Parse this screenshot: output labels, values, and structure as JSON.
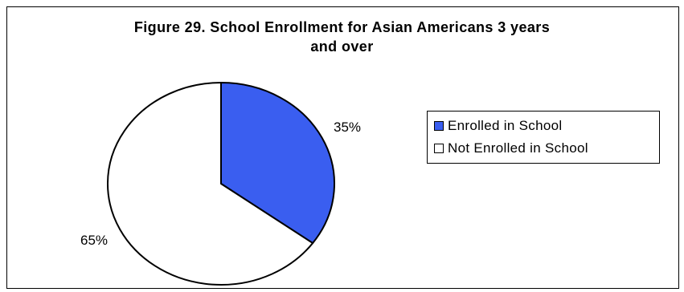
{
  "chart_data": {
    "type": "pie",
    "title_line1": "Figure 29. School Enrollment for Asian Americans 3 years",
    "title_line2": "and over",
    "slices": [
      {
        "label": "Enrolled in School",
        "value": 35,
        "value_label": "35%",
        "color": "#3a5ef0"
      },
      {
        "label": "Not Enrolled in School",
        "value": 65,
        "value_label": "65%",
        "color": "#ffffff"
      }
    ],
    "legend_position": "right"
  }
}
